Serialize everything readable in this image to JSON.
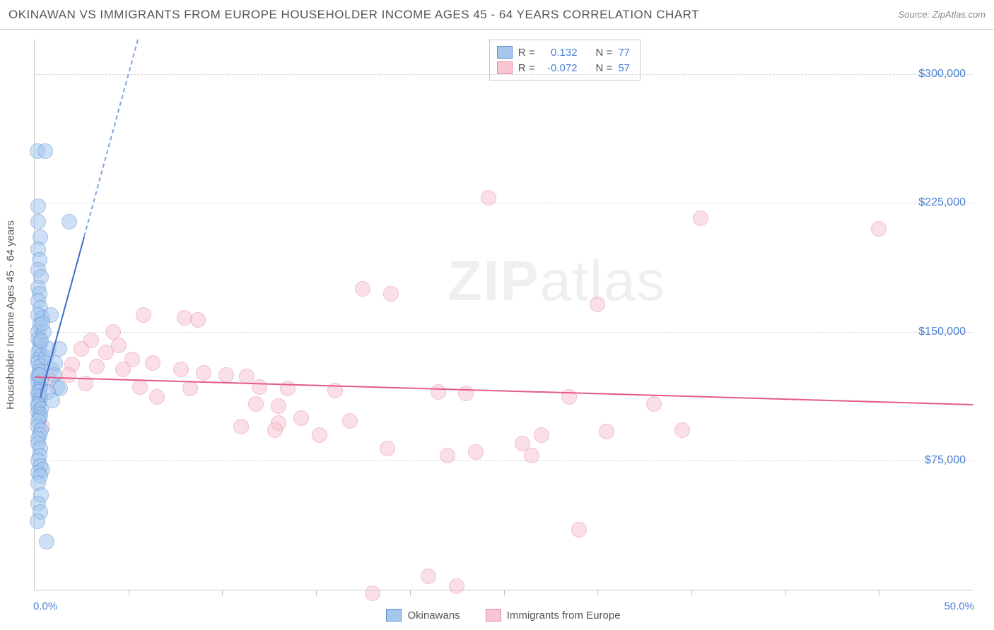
{
  "title": "OKINAWAN VS IMMIGRANTS FROM EUROPE HOUSEHOLDER INCOME AGES 45 - 64 YEARS CORRELATION CHART",
  "source": "Source: ZipAtlas.com",
  "ylabel": "Householder Income Ages 45 - 64 years",
  "watermark1": "ZIP",
  "watermark2": "atlas",
  "chart": {
    "type": "scatter",
    "xlim": [
      0,
      50
    ],
    "ylim": [
      0,
      320000
    ],
    "xlabel_min": "0.0%",
    "xlabel_max": "50.0%",
    "xticks": [
      5,
      10,
      15,
      20,
      25,
      30,
      35,
      40,
      45
    ],
    "yticks": [
      75000,
      150000,
      225000,
      300000
    ],
    "ytick_labels": [
      "$75,000",
      "$150,000",
      "$225,000",
      "$300,000"
    ],
    "grid_color": "#d8d8d8",
    "background_color": "#ffffff",
    "marker_radius": 11
  },
  "series": {
    "okinawans": {
      "label": "Okinawans",
      "fill": "#a5c7ed",
      "stroke": "#5a8fd6",
      "r_label": "R =",
      "r_value": "0.132",
      "n_label": "N =",
      "n_value": "77",
      "trend": {
        "x1": 0.3,
        "y1": 112000,
        "x2": 5.5,
        "y2": 320000,
        "dashed_after": 0.45
      },
      "points": [
        [
          0.15,
          255000
        ],
        [
          0.55,
          255000
        ],
        [
          0.2,
          223000
        ],
        [
          0.2,
          214000
        ],
        [
          1.85,
          214000
        ],
        [
          0.3,
          205000
        ],
        [
          0.2,
          198000
        ],
        [
          0.25,
          192000
        ],
        [
          0.2,
          186000
        ],
        [
          0.35,
          182000
        ],
        [
          0.2,
          176000
        ],
        [
          0.25,
          172000
        ],
        [
          0.2,
          168000
        ],
        [
          0.3,
          164000
        ],
        [
          0.2,
          160000
        ],
        [
          0.4,
          158000
        ],
        [
          0.25,
          154000
        ],
        [
          0.2,
          150000
        ],
        [
          0.2,
          146000
        ],
        [
          0.3,
          144000
        ],
        [
          0.25,
          140000
        ],
        [
          0.2,
          138000
        ],
        [
          0.35,
          136000
        ],
        [
          0.2,
          134000
        ],
        [
          0.2,
          132000
        ],
        [
          0.3,
          130000
        ],
        [
          0.25,
          127000
        ],
        [
          0.2,
          125000
        ],
        [
          0.2,
          123000
        ],
        [
          0.35,
          121000
        ],
        [
          0.2,
          120000
        ],
        [
          0.3,
          118000
        ],
        [
          0.25,
          116000
        ],
        [
          0.2,
          115000
        ],
        [
          0.2,
          113000
        ],
        [
          0.3,
          112000
        ],
        [
          0.25,
          110000
        ],
        [
          0.2,
          108000
        ],
        [
          0.2,
          107000
        ],
        [
          0.35,
          105000
        ],
        [
          0.2,
          103000
        ],
        [
          0.3,
          102000
        ],
        [
          0.25,
          100000
        ],
        [
          0.2,
          98000
        ],
        [
          0.2,
          95000
        ],
        [
          0.35,
          93000
        ],
        [
          0.25,
          90000
        ],
        [
          0.2,
          88000
        ],
        [
          0.6,
          135000
        ],
        [
          0.75,
          140000
        ],
        [
          0.9,
          128000
        ],
        [
          1.05,
          125000
        ],
        [
          1.2,
          118000
        ],
        [
          1.35,
          117000
        ],
        [
          0.85,
          160000
        ],
        [
          0.5,
          150000
        ],
        [
          0.7,
          115000
        ],
        [
          0.95,
          110000
        ],
        [
          1.1,
          132000
        ],
        [
          1.3,
          140000
        ],
        [
          0.2,
          85000
        ],
        [
          0.3,
          82000
        ],
        [
          0.25,
          78000
        ],
        [
          0.2,
          75000
        ],
        [
          0.3,
          72000
        ],
        [
          0.4,
          70000
        ],
        [
          0.2,
          68000
        ],
        [
          0.3,
          66000
        ],
        [
          0.2,
          62000
        ],
        [
          0.35,
          55000
        ],
        [
          0.2,
          50000
        ],
        [
          0.3,
          45000
        ],
        [
          0.15,
          40000
        ],
        [
          0.65,
          28000
        ],
        [
          0.25,
          125000
        ],
        [
          0.35,
          145000
        ],
        [
          0.4,
          155000
        ]
      ]
    },
    "europe": {
      "label": "Immigrants from Europe",
      "fill": "#f7c6d2",
      "stroke": "#e88aa8",
      "r_label": "R =",
      "r_value": "-0.072",
      "n_label": "N =",
      "n_value": "57",
      "trend": {
        "x1": 0,
        "y1": 124000,
        "x2": 50,
        "y2": 108000
      },
      "points": [
        [
          24.2,
          228000
        ],
        [
          35.5,
          216000
        ],
        [
          45.0,
          210000
        ],
        [
          17.5,
          175000
        ],
        [
          19.0,
          172000
        ],
        [
          30.0,
          166000
        ],
        [
          5.8,
          160000
        ],
        [
          8.0,
          158000
        ],
        [
          8.7,
          157000
        ],
        [
          4.2,
          150000
        ],
        [
          3.0,
          145000
        ],
        [
          4.5,
          142000
        ],
        [
          2.5,
          140000
        ],
        [
          3.8,
          138000
        ],
        [
          5.2,
          134000
        ],
        [
          6.3,
          132000
        ],
        [
          2.0,
          131000
        ],
        [
          3.3,
          130000
        ],
        [
          4.7,
          128000
        ],
        [
          7.8,
          128000
        ],
        [
          9.0,
          126000
        ],
        [
          10.2,
          125000
        ],
        [
          11.3,
          124000
        ],
        [
          0.8,
          122000
        ],
        [
          1.8,
          125000
        ],
        [
          2.7,
          120000
        ],
        [
          5.6,
          118000
        ],
        [
          8.3,
          117000
        ],
        [
          12.0,
          118000
        ],
        [
          13.5,
          117000
        ],
        [
          16.0,
          116000
        ],
        [
          21.5,
          115000
        ],
        [
          23.0,
          114000
        ],
        [
          28.5,
          112000
        ],
        [
          33.0,
          108000
        ],
        [
          6.5,
          112000
        ],
        [
          11.8,
          108000
        ],
        [
          13.0,
          107000
        ],
        [
          14.2,
          100000
        ],
        [
          13.0,
          97000
        ],
        [
          16.8,
          98000
        ],
        [
          11.0,
          95000
        ],
        [
          12.8,
          93000
        ],
        [
          15.2,
          90000
        ],
        [
          23.5,
          80000
        ],
        [
          26.0,
          85000
        ],
        [
          27.0,
          90000
        ],
        [
          30.5,
          92000
        ],
        [
          34.5,
          93000
        ],
        [
          26.5,
          78000
        ],
        [
          22.0,
          78000
        ],
        [
          29.0,
          35000
        ],
        [
          21.0,
          8000
        ],
        [
          22.5,
          2000
        ],
        [
          18.0,
          -2000
        ],
        [
          18.8,
          82000
        ],
        [
          0.4,
          95000
        ]
      ]
    }
  },
  "bottom_legend": {
    "a": "Okinawans",
    "b": "Immigrants from Europe"
  }
}
